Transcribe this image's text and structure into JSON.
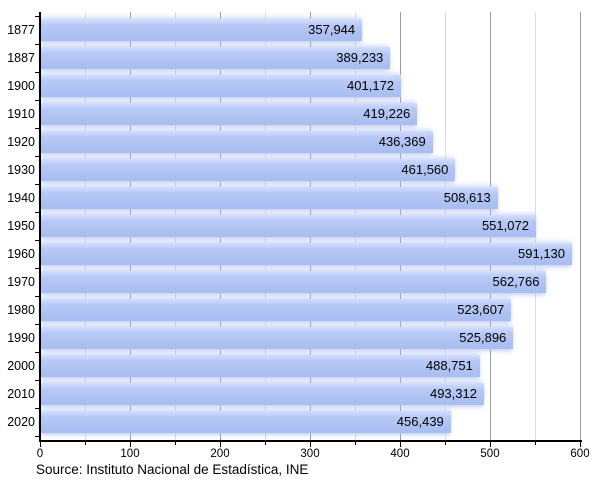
{
  "chart_data": {
    "type": "bar",
    "orientation": "horizontal",
    "title": "",
    "xlabel": "",
    "ylabel": "",
    "categories": [
      "1877",
      "1887",
      "1900",
      "1910",
      "1920",
      "1930",
      "1940",
      "1950",
      "1960",
      "1970",
      "1980",
      "1990",
      "2000",
      "2010",
      "2020"
    ],
    "values": [
      357944,
      389233,
      401172,
      419226,
      436369,
      461560,
      508613,
      551072,
      591130,
      562766,
      523607,
      525896,
      488751,
      493312,
      456439
    ],
    "value_labels": [
      "357,944",
      "389,233",
      "401,172",
      "419,226",
      "436,369",
      "461,560",
      "508,613",
      "551,072",
      "591,130",
      "562,766",
      "523,607",
      "525,896",
      "488,751",
      "493,312",
      "456,439"
    ],
    "xlim": [
      0,
      600
    ],
    "x_axis_unit": "thousands",
    "xticks": [
      0,
      100,
      200,
      300,
      400,
      500,
      600
    ],
    "xtick_labels": [
      "0",
      "100",
      "200",
      "300",
      "400",
      "500",
      "600"
    ],
    "x_minor_tick_step": 50,
    "grid": true,
    "legend": null,
    "source": "Source: Instituto Nacional de Estadística, INE",
    "colors": {
      "bar_fill": "#aec2f2",
      "bar_fill_light": "#d2defb",
      "grid_major": "#9c9c9c",
      "grid_minor": "#dcdcdc",
      "axis": "#000000",
      "text": "#000000",
      "background": "#ffffff"
    }
  }
}
